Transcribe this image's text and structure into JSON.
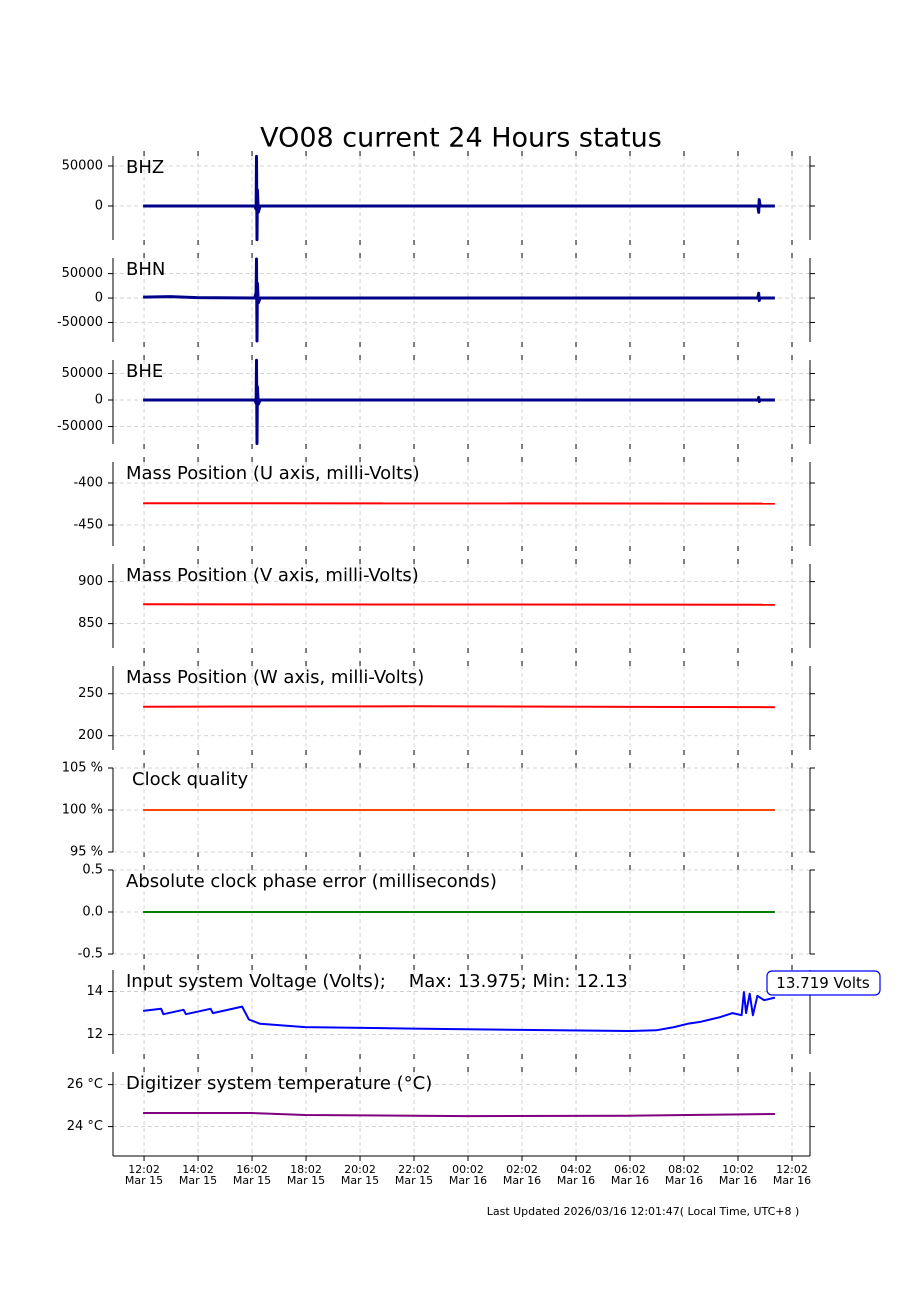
{
  "title": "VO08 current 24 Hours status",
  "footer": "Last Updated 2026/03/16 12:01:47( Local Time, UTC+8 )",
  "xlim": [
    "Mar 15 10:53",
    "Mar 16 12:42"
  ],
  "xticks": [
    {
      "time": "12:02",
      "date": "Mar 15"
    },
    {
      "time": "14:02",
      "date": "Mar 15"
    },
    {
      "time": "16:02",
      "date": "Mar 15"
    },
    {
      "time": "18:02",
      "date": "Mar 15"
    },
    {
      "time": "20:02",
      "date": "Mar 15"
    },
    {
      "time": "22:02",
      "date": "Mar 15"
    },
    {
      "time": "00:02",
      "date": "Mar 16"
    },
    {
      "time": "02:02",
      "date": "Mar 16"
    },
    {
      "time": "04:02",
      "date": "Mar 16"
    },
    {
      "time": "06:02",
      "date": "Mar 16"
    },
    {
      "time": "08:02",
      "date": "Mar 16"
    },
    {
      "time": "10:02",
      "date": "Mar 16"
    },
    {
      "time": "12:02",
      "date": "Mar 16"
    }
  ],
  "grid": true,
  "chart_data": [
    {
      "type": "line",
      "label": "BHZ",
      "color": "#00008b",
      "ylim": [
        -42500,
        62500
      ],
      "yticks": [
        0,
        50000
      ],
      "x": [
        "Mar 15 12:00",
        "Mar 15 16:08",
        "Mar 15 16:11",
        "Mar 15 16:12",
        "Mar 15 16:13",
        "Mar 15 16:14",
        "Mar 15 16:16",
        "Mar 15 16:20",
        "Mar 16 10:46",
        "Mar 16 10:48",
        "Mar 16 10:49",
        "Mar 16 10:51",
        "Mar 16 11:24"
      ],
      "values": [
        0,
        0,
        -4000,
        62000,
        -42000,
        20000,
        -8000,
        0,
        0,
        -8000,
        8000,
        0,
        0
      ]
    },
    {
      "type": "line",
      "label": "BHN",
      "color": "#00008b",
      "ylim": [
        -90000,
        82000
      ],
      "yticks": [
        -50000,
        0,
        50000
      ],
      "x": [
        "Mar 15 12:00",
        "Mar 15 13:00",
        "Mar 15 14:00",
        "Mar 15 16:08",
        "Mar 15 16:11",
        "Mar 15 16:12",
        "Mar 15 16:13",
        "Mar 15 16:14",
        "Mar 15 16:16",
        "Mar 15 16:20",
        "Mar 16 10:46",
        "Mar 16 10:48",
        "Mar 16 10:49",
        "Mar 16 10:51",
        "Mar 16 11:24"
      ],
      "values": [
        2000,
        3000,
        1000,
        0,
        12000,
        80000,
        -88000,
        30000,
        -10000,
        0,
        0,
        10000,
        -5000,
        0,
        0
      ]
    },
    {
      "type": "line",
      "label": "BHE",
      "color": "#00008b",
      "ylim": [
        -83000,
        75500
      ],
      "yticks": [
        -50000,
        0,
        50000
      ],
      "x": [
        "Mar 15 12:00",
        "Mar 15 16:08",
        "Mar 15 16:11",
        "Mar 15 16:12",
        "Mar 15 16:13",
        "Mar 15 16:14",
        "Mar 15 16:16",
        "Mar 15 16:20",
        "Mar 16 10:46",
        "Mar 16 10:48",
        "Mar 16 10:49",
        "Mar 16 10:51",
        "Mar 16 11:24"
      ],
      "values": [
        0,
        0,
        -6000,
        75000,
        -82000,
        25000,
        -8000,
        0,
        0,
        5000,
        -3000,
        0,
        0
      ]
    },
    {
      "type": "line",
      "label": "Mass Position (U axis, milli-Volts)",
      "color": "red",
      "ylim": [
        -475,
        -375
      ],
      "yticks": [
        -450,
        -400
      ],
      "x": [
        "Mar 15 12:00",
        "Mar 16 11:24"
      ],
      "values": [
        -424,
        -424.5
      ]
    },
    {
      "type": "line",
      "label": "Mass Position (V axis, milli-Volts)",
      "color": "red",
      "ylim": [
        821,
        921
      ],
      "yticks": [
        850,
        900
      ],
      "x": [
        "Mar 15 12:00",
        "Mar 16 11:24"
      ],
      "values": [
        873,
        872.5
      ]
    },
    {
      "type": "line",
      "label": "Mass Position (W axis, milli-Volts)",
      "color": "red",
      "ylim": [
        183,
        283
      ],
      "yticks": [
        200,
        250
      ],
      "x": [
        "Mar 15 12:00",
        "Mar 15 22:00",
        "Mar 16 11:24"
      ],
      "values": [
        234.5,
        235,
        234
      ]
    },
    {
      "type": "line",
      "label": "Clock quality",
      "color": "#ff4500",
      "ylim": [
        95,
        105
      ],
      "yticks": [
        {
          "value": 95,
          "label": "95 %"
        },
        {
          "value": 100,
          "label": "100 %"
        },
        {
          "value": 105,
          "label": "105 %"
        }
      ],
      "x": [
        "Mar 15 12:00",
        "Mar 16 11:24"
      ],
      "values": [
        100,
        100
      ]
    },
    {
      "type": "line",
      "label": "Absolute clock phase error (milliseconds)",
      "color": "green",
      "ylim": [
        -0.5,
        0.5
      ],
      "yticks": [
        -0.5,
        {
          "value": 0,
          "label": "0.0"
        },
        0.5
      ],
      "x": [
        "Mar 15 12:00",
        "Mar 16 11:24"
      ],
      "values": [
        0,
        0
      ]
    },
    {
      "type": "line",
      "label": "Input system Voltage (Volts);    Max: 13.975; Min: 12.13",
      "color": "blue",
      "ylim": [
        11.1,
        15
      ],
      "yticks": [
        12,
        14
      ],
      "annotation": "13.719 Volts",
      "x": [
        "Mar 15 12:00",
        "Mar 15 12:40",
        "Mar 15 12:45",
        "Mar 15 13:30",
        "Mar 15 13:35",
        "Mar 15 14:30",
        "Mar 15 14:35",
        "Mar 15 15:40",
        "Mar 15 15:55",
        "Mar 15 16:20",
        "Mar 15 18:00",
        "Mar 15 22:00",
        "Mar 16 02:00",
        "Mar 16 06:00",
        "Mar 16 07:00",
        "Mar 16 07:40",
        "Mar 16 08:10",
        "Mar 16 08:40",
        "Mar 16 09:20",
        "Mar 16 09:50",
        "Mar 16 10:10",
        "Mar 16 10:15",
        "Mar 16 10:20",
        "Mar 16 10:28",
        "Mar 16 10:35",
        "Mar 16 10:45",
        "Mar 16 11:00",
        "Mar 16 11:24"
      ],
      "values": [
        13.1,
        13.2,
        12.95,
        13.15,
        12.95,
        13.2,
        13.0,
        13.3,
        12.7,
        12.5,
        12.35,
        12.28,
        12.22,
        12.17,
        12.2,
        12.35,
        12.5,
        12.6,
        12.8,
        13.0,
        12.9,
        13.975,
        13.0,
        13.9,
        12.9,
        13.8,
        13.6,
        13.719
      ]
    },
    {
      "type": "line",
      "label": "Digitizer system temperature (°C)",
      "color": "purple",
      "ylim": [
        22.6,
        26.6
      ],
      "yticks": [
        {
          "value": 24,
          "label": "24 °C"
        },
        {
          "value": 26,
          "label": "26 °C"
        }
      ],
      "x": [
        "Mar 15 12:00",
        "Mar 15 16:00",
        "Mar 15 18:00",
        "Mar 16 00:00",
        "Mar 16 06:00",
        "Mar 16 11:24"
      ],
      "values": [
        24.65,
        24.65,
        24.55,
        24.5,
        24.52,
        24.6
      ]
    }
  ]
}
